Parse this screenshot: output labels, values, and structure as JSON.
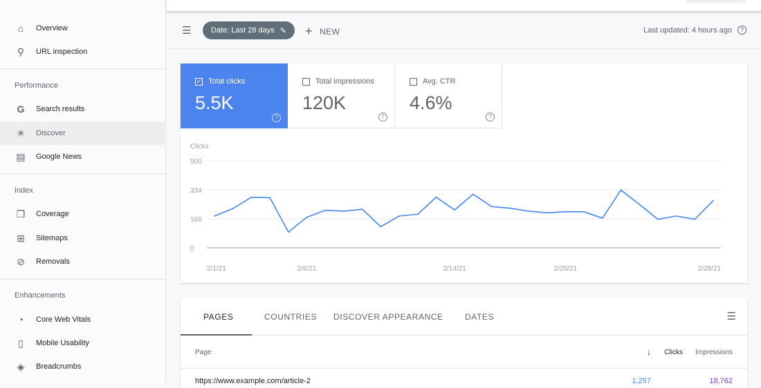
{
  "sidebar": {
    "items_top": [
      {
        "label": "Overview",
        "icon": "home-icon"
      },
      {
        "label": "URL inspection",
        "icon": "search-icon"
      }
    ],
    "sections": [
      {
        "title": "Performance",
        "items": [
          {
            "label": "Search results",
            "icon": "google-icon"
          },
          {
            "label": "Discover",
            "icon": "asterisk-icon",
            "active": true
          },
          {
            "label": "Google News",
            "icon": "news-icon"
          }
        ]
      },
      {
        "title": "Index",
        "items": [
          {
            "label": "Coverage",
            "icon": "copy-icon"
          },
          {
            "label": "Sitemaps",
            "icon": "sitemap-icon"
          },
          {
            "label": "Removals",
            "icon": "eye-off-icon"
          }
        ]
      },
      {
        "title": "Enhancements",
        "items": [
          {
            "label": "Core Web Vitals",
            "icon": "gauge-icon"
          },
          {
            "label": "Mobile Usability",
            "icon": "phone-icon"
          },
          {
            "label": "Breadcrumbs",
            "icon": "layers-icon"
          }
        ]
      }
    ]
  },
  "filter": {
    "date_chip": "Date: Last 28 days",
    "new_label": "NEW",
    "last_updated": "Last updated: 4 hours ago"
  },
  "metrics": [
    {
      "label": "Total clicks",
      "value": "5.5K",
      "checked": true
    },
    {
      "label": "Total impressions",
      "value": "120K",
      "checked": false
    },
    {
      "label": "Avg. CTR",
      "value": "4.6%",
      "checked": false
    }
  ],
  "chart_data": {
    "type": "line",
    "ylabel": "Clicks",
    "ylim": [
      0,
      500
    ],
    "yticks": [
      "500",
      "334",
      "166",
      "0"
    ],
    "grid": true,
    "xtick_labels": [
      "2/1/21",
      "2/6/21",
      "2/14/21",
      "2/20/21",
      "2/28/21"
    ],
    "line_color": "#4285f4",
    "x": [
      "2/1/21",
      "2/2/21",
      "2/3/21",
      "2/4/21",
      "2/5/21",
      "2/6/21",
      "2/7/21",
      "2/8/21",
      "2/9/21",
      "2/10/21",
      "2/11/21",
      "2/12/21",
      "2/13/21",
      "2/14/21",
      "2/15/21",
      "2/16/21",
      "2/17/21",
      "2/18/21",
      "2/19/21",
      "2/20/21",
      "2/21/21",
      "2/22/21",
      "2/23/21",
      "2/24/21",
      "2/25/21",
      "2/26/21",
      "2/27/21",
      "2/28/21"
    ],
    "series": [
      {
        "values": [
          183,
          226,
          291,
          288,
          91,
          176,
          216,
          211,
          222,
          122,
          183,
          193,
          291,
          218,
          308,
          237,
          228,
          211,
          201,
          208,
          207,
          171,
          332,
          250,
          164,
          183,
          164,
          272
        ]
      }
    ]
  },
  "table": {
    "tabs": [
      "PAGES",
      "COUNTRIES",
      "DISCOVER APPEARANCE",
      "DATES"
    ],
    "columns": [
      "Page",
      "Clicks",
      "Impressions"
    ],
    "rows": [
      {
        "page": "https://www.example.com/article-2",
        "clicks": "1,257",
        "impressions": "18,762"
      }
    ]
  }
}
